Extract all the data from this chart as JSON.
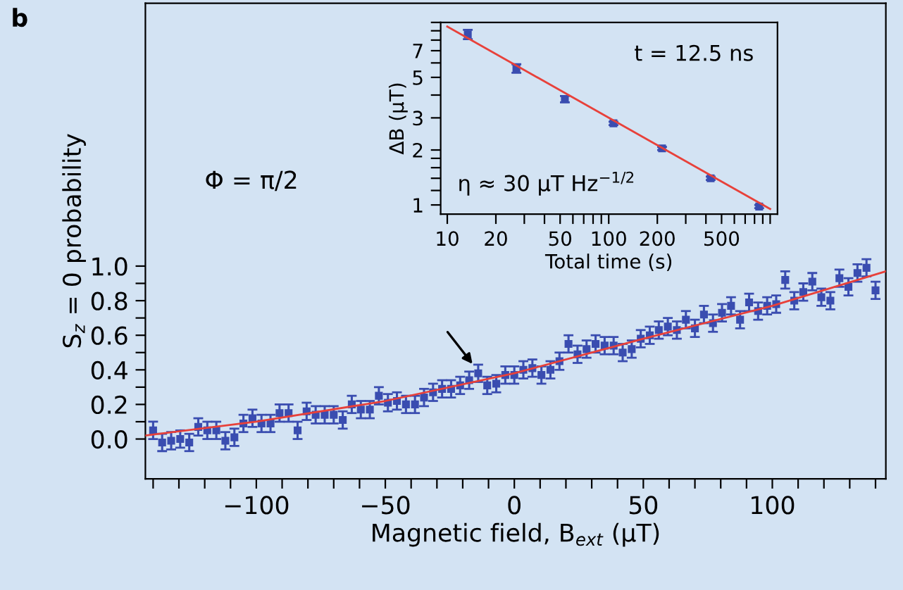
{
  "chart_data": [
    {
      "type": "scatter",
      "xlabel": "Magnetic field, B$_{ext}$ (µT)",
      "ylabel": "S$_{z}$ = 0 probability",
      "xlim": [
        -143,
        144
      ],
      "ylim": [
        -0.23,
        2.52
      ],
      "xticks": [
        {
          "value": -140,
          "label": null
        },
        {
          "value": -130,
          "label": null
        },
        {
          "value": -120,
          "label": null
        },
        {
          "value": -110,
          "label": null
        },
        {
          "value": -100,
          "label": "−100"
        },
        {
          "value": -90,
          "label": null
        },
        {
          "value": -80,
          "label": null
        },
        {
          "value": -70,
          "label": null
        },
        {
          "value": -60,
          "label": null
        },
        {
          "value": -50,
          "label": "−50"
        },
        {
          "value": -40,
          "label": null
        },
        {
          "value": -30,
          "label": null
        },
        {
          "value": -20,
          "label": null
        },
        {
          "value": -10,
          "label": null
        },
        0,
        {
          "value": 10,
          "label": null
        },
        {
          "value": 20,
          "label": null
        },
        {
          "value": 30,
          "label": null
        },
        {
          "value": 40,
          "label": null
        },
        50,
        {
          "value": 60,
          "label": null
        },
        {
          "value": 70,
          "label": null
        },
        {
          "value": 80,
          "label": null
        },
        {
          "value": 90,
          "label": null
        },
        100,
        {
          "value": 110,
          "label": null
        },
        {
          "value": 120,
          "label": null
        },
        {
          "value": 130,
          "label": null
        },
        {
          "value": 140,
          "label": null
        }
      ],
      "yticks": [
        {
          "value": 0,
          "label": "0.0"
        },
        {
          "value": 0.1,
          "label": null
        },
        {
          "value": 0.2,
          "label": "0.2"
        },
        {
          "value": 0.3,
          "label": null
        },
        {
          "value": 0.4,
          "label": "0.4"
        },
        {
          "value": 0.5,
          "label": null
        },
        {
          "value": 0.6,
          "label": "0.6"
        },
        {
          "value": 0.7,
          "label": null
        },
        {
          "value": 0.8,
          "label": "0.8"
        },
        {
          "value": 0.9,
          "label": null
        },
        {
          "value": 1,
          "label": "1.0"
        }
      ],
      "grid": false,
      "x": [
        -140,
        -136.5,
        -133,
        -129.5,
        -126,
        -122.5,
        -119,
        -115.5,
        -112,
        -108.5,
        -105,
        -101.5,
        -98,
        -94.5,
        -91,
        -87.5,
        -84,
        -80.5,
        -77,
        -73.5,
        -70,
        -66.5,
        -63,
        -59.5,
        -56,
        -52.5,
        -49,
        -45.5,
        -42,
        -38.5,
        -35,
        -31.5,
        -28,
        -24.5,
        -21,
        -17.5,
        -14,
        -10.5,
        -7,
        -3.5,
        0,
        3.5,
        7,
        10.5,
        14,
        17.5,
        21,
        24.5,
        28,
        31.5,
        35,
        38.5,
        42,
        45.5,
        49,
        52.5,
        56,
        59.5,
        63,
        66.5,
        70,
        73.5,
        77,
        80.5,
        84,
        87.5,
        91,
        94.5,
        98,
        101.5,
        105,
        108.5,
        112,
        115.5,
        119,
        122.5,
        126,
        129.5,
        133,
        136.5,
        140
      ],
      "series": [
        {
          "color": "#3a4db0",
          "marker": "square",
          "errors": [
            0.05,
            0.05,
            0.05,
            0.05,
            0.05,
            0.05,
            0.05,
            0.05,
            0.05,
            0.05,
            0.05,
            0.05,
            0.05,
            0.05,
            0.05,
            0.05,
            0.05,
            0.05,
            0.05,
            0.05,
            0.05,
            0.05,
            0.05,
            0.05,
            0.05,
            0.05,
            0.05,
            0.05,
            0.05,
            0.05,
            0.05,
            0.05,
            0.05,
            0.05,
            0.05,
            0.05,
            0.05,
            0.05,
            0.05,
            0.05,
            0.05,
            0.05,
            0.05,
            0.05,
            0.05,
            0.05,
            0.05,
            0.05,
            0.05,
            0.05,
            0.05,
            0.05,
            0.05,
            0.05,
            0.05,
            0.05,
            0.05,
            0.05,
            0.05,
            0.05,
            0.05,
            0.05,
            0.05,
            0.05,
            0.05,
            0.05,
            0.05,
            0.05,
            0.05,
            0.05,
            0.05,
            0.05,
            0.05,
            0.05,
            0.05,
            0.05,
            0.05,
            0.05,
            0.05,
            0.05,
            0.05
          ],
          "values": [
            0.05,
            -0.02,
            -0.01,
            0.0,
            -0.02,
            0.07,
            0.05,
            0.05,
            -0.01,
            0.01,
            0.09,
            0.12,
            0.09,
            0.09,
            0.15,
            0.15,
            0.05,
            0.16,
            0.14,
            0.14,
            0.14,
            0.11,
            0.2,
            0.17,
            0.17,
            0.25,
            0.21,
            0.22,
            0.2,
            0.2,
            0.24,
            0.27,
            0.29,
            0.29,
            0.31,
            0.34,
            0.38,
            0.31,
            0.32,
            0.37,
            0.37,
            0.4,
            0.41,
            0.37,
            0.4,
            0.45,
            0.55,
            0.49,
            0.52,
            0.55,
            0.54,
            0.54,
            0.5,
            0.52,
            0.58,
            0.6,
            0.63,
            0.65,
            0.63,
            0.69,
            0.64,
            0.72,
            0.67,
            0.73,
            0.77,
            0.69,
            0.79,
            0.74,
            0.77,
            0.78,
            0.92,
            0.8,
            0.85,
            0.91,
            0.82,
            0.8,
            0.93,
            0.88,
            0.96,
            0.99,
            0.86
          ]
        },
        {
          "type": "line",
          "color": "#e8413a",
          "x": [
            -143,
            -100,
            -50,
            0,
            50,
            100,
            144
          ],
          "values": [
            0.02,
            0.1,
            0.22,
            0.38,
            0.58,
            0.77,
            0.97
          ]
        }
      ],
      "annotations": [
        "b",
        "Φ = π/2"
      ]
    },
    {
      "type": "scatter",
      "xlabel": "Total time (s)",
      "ylabel": "ΔB (µT)",
      "log": "xy",
      "xlim": [
        9.1,
        1110
      ],
      "ylim": [
        0.89,
        10
      ],
      "xticks": [
        10,
        20,
        {
          "value": 30,
          "label": null
        },
        {
          "value": 40,
          "label": null
        },
        50,
        {
          "value": 60,
          "label": null
        },
        {
          "value": 70,
          "label": null
        },
        {
          "value": 80,
          "label": null
        },
        {
          "value": 90,
          "label": null
        },
        100,
        200,
        {
          "value": 300,
          "label": null
        },
        {
          "value": 400,
          "label": null
        },
        500,
        {
          "value": 600,
          "label": null
        },
        {
          "value": 700,
          "label": null
        },
        {
          "value": 800,
          "label": null
        },
        {
          "value": 900,
          "label": null
        },
        {
          "value": 1000,
          "label": null
        }
      ],
      "yticks": [
        1,
        {
          "value": 1.2,
          "label": null
        },
        {
          "value": 1.4,
          "label": null
        },
        {
          "value": 1.6,
          "label": null
        },
        {
          "value": 1.8,
          "label": null
        },
        2,
        3,
        {
          "value": 4,
          "label": null
        },
        5,
        {
          "value": 6,
          "label": null
        },
        7,
        {
          "value": 8,
          "label": null
        },
        {
          "value": 9,
          "label": null
        },
        {
          "value": 10,
          "label": null
        }
      ],
      "grid": false,
      "x": [
        13.4,
        26.8,
        53.5,
        107,
        214,
        428,
        855
      ],
      "series": [
        {
          "color": "#3a4db0",
          "marker": "square",
          "values": [
            8.6,
            5.6,
            3.8,
            2.8,
            2.04,
            1.4,
            0.98
          ],
          "errors": [
            0.5,
            0.3,
            0.15,
            0.06,
            0.04,
            0.03,
            0.02
          ]
        },
        {
          "type": "line",
          "color": "#e8413a",
          "x": [
            10,
            1000
          ],
          "values": [
            9.5,
            0.95
          ]
        }
      ],
      "annotations": [
        "t = 12.5 ns",
        "η ≈ 30 µT Hz$^{−1/2}$"
      ]
    }
  ]
}
